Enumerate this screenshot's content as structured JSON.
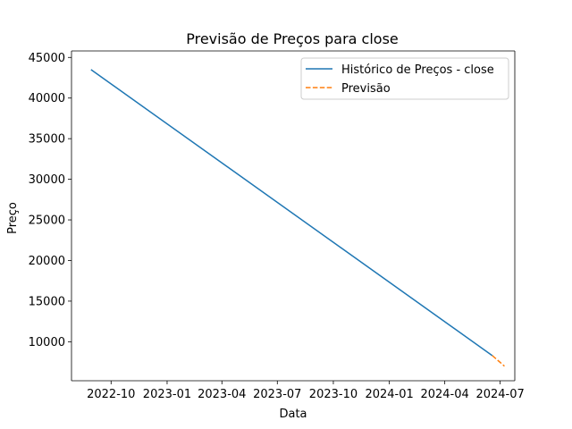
{
  "chart_data": {
    "type": "line",
    "title": "Previsão de Preços para close",
    "xlabel": "Data",
    "ylabel": "Preço",
    "x_axis_type": "date",
    "xlim": [
      "2022-07-28",
      "2024-07-25"
    ],
    "ylim": [
      5200,
      45800
    ],
    "x_ticks": [
      {
        "date": "2022-10-01",
        "label": "2022-10"
      },
      {
        "date": "2023-01-01",
        "label": "2023-01"
      },
      {
        "date": "2023-04-01",
        "label": "2023-04"
      },
      {
        "date": "2023-07-01",
        "label": "2023-07"
      },
      {
        "date": "2023-10-01",
        "label": "2023-10"
      },
      {
        "date": "2024-01-01",
        "label": "2024-01"
      },
      {
        "date": "2024-04-01",
        "label": "2024-04"
      },
      {
        "date": "2024-07-01",
        "label": "2024-07"
      }
    ],
    "y_ticks": [
      {
        "value": 10000,
        "label": "10000"
      },
      {
        "value": 15000,
        "label": "15000"
      },
      {
        "value": 20000,
        "label": "20000"
      },
      {
        "value": 25000,
        "label": "25000"
      },
      {
        "value": 30000,
        "label": "30000"
      },
      {
        "value": 35000,
        "label": "35000"
      },
      {
        "value": 40000,
        "label": "40000"
      },
      {
        "value": 45000,
        "label": "45000"
      }
    ],
    "grid": false,
    "legend_position": "top-right",
    "series": [
      {
        "name": "Histórico de Preços - close",
        "color": "#1f77b4",
        "style": "solid",
        "points": [
          {
            "x": "2022-08-29",
            "y": 43500
          },
          {
            "x": "2024-06-18",
            "y": 8300
          }
        ]
      },
      {
        "name": "Previsão",
        "color": "#ff7f0e",
        "style": "dashed",
        "points": [
          {
            "x": "2024-06-18",
            "y": 8300
          },
          {
            "x": "2024-07-08",
            "y": 7000
          }
        ]
      }
    ]
  }
}
